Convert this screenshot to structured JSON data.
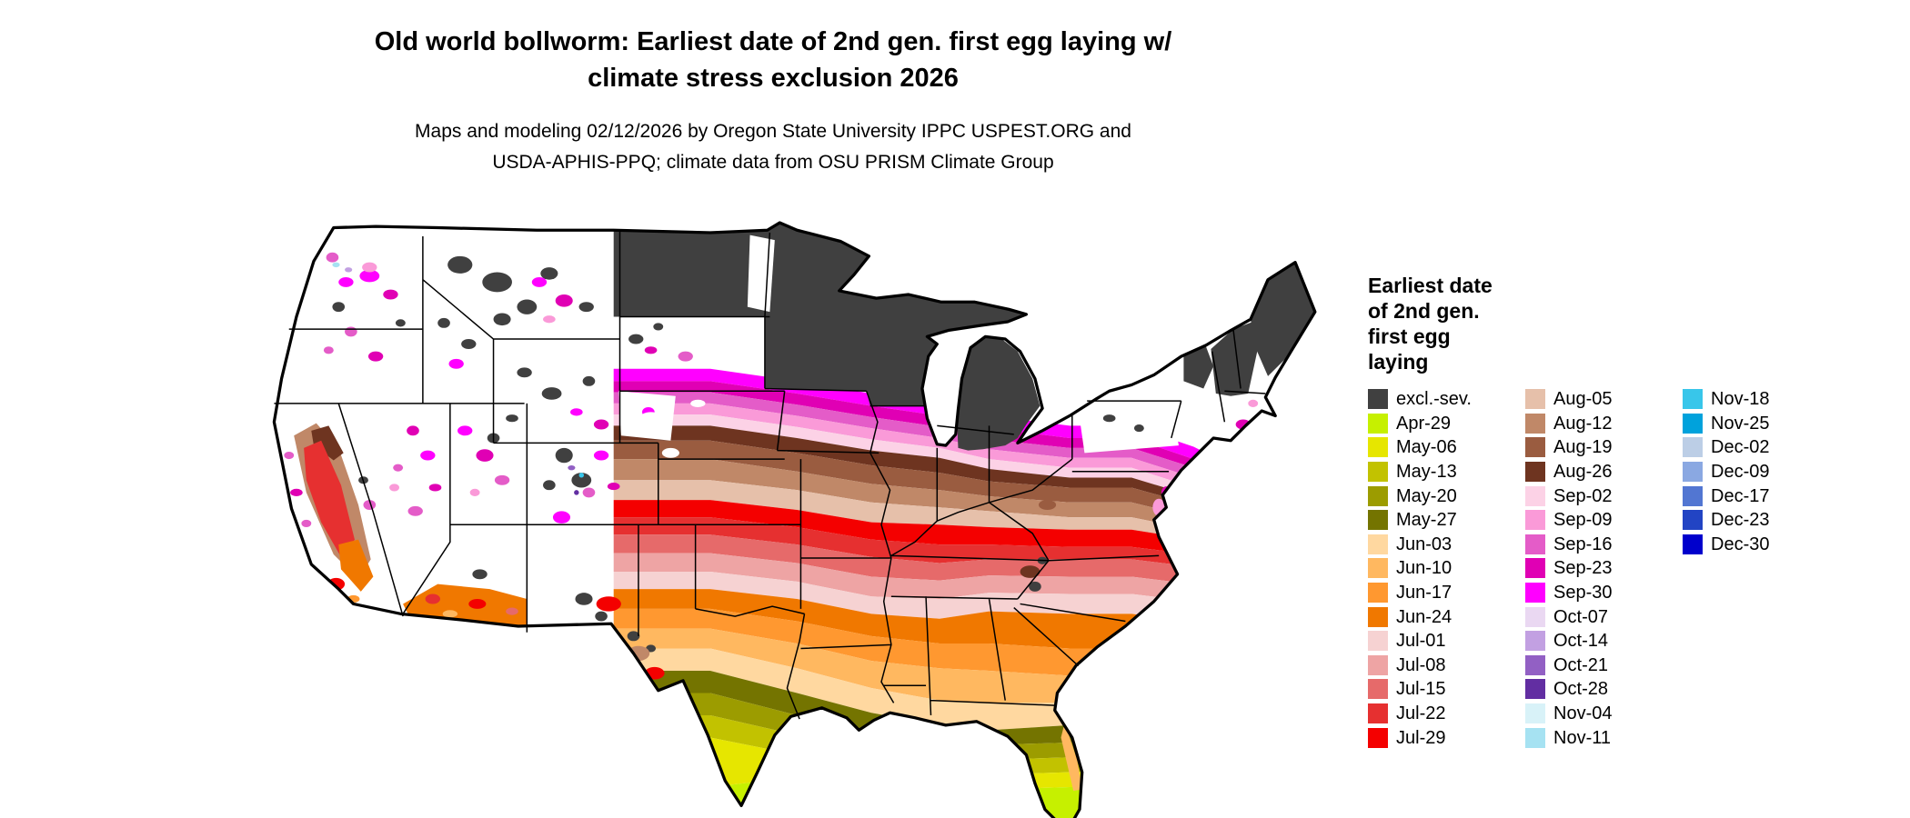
{
  "title": {
    "line1": "Old world bollworm: Earliest date of 2nd gen. first egg laying w/",
    "line2": "climate stress exclusion 2026"
  },
  "subtitle": {
    "line1": "Maps and modeling 02/12/2026 by Oregon State University IPPC USPEST.ORG and",
    "line2": "USDA-APHIS-PPQ; climate data from OSU PRISM Climate Group"
  },
  "legend": {
    "title_lines": [
      "Earliest date",
      "of 2nd gen.",
      "first egg",
      "laying"
    ],
    "columns": [
      [
        {
          "label": "excl.-sev.",
          "color": "#404040"
        },
        {
          "label": "Apr-29",
          "color": "#c6f000"
        },
        {
          "label": "May-06",
          "color": "#e6e600"
        },
        {
          "label": "May-13",
          "color": "#c2c200"
        },
        {
          "label": "May-20",
          "color": "#9c9c00"
        },
        {
          "label": "May-27",
          "color": "#747400"
        },
        {
          "label": "Jun-03",
          "color": "#ffd8a0"
        },
        {
          "label": "Jun-10",
          "color": "#ffb860"
        },
        {
          "label": "Jun-17",
          "color": "#ff9830"
        },
        {
          "label": "Jun-24",
          "color": "#f07800"
        },
        {
          "label": "Jul-01",
          "color": "#f6d2d2"
        },
        {
          "label": "Jul-08",
          "color": "#eea4a4"
        },
        {
          "label": "Jul-15",
          "color": "#e66a6a"
        },
        {
          "label": "Jul-22",
          "color": "#e63030"
        },
        {
          "label": "Jul-29",
          "color": "#f40000"
        }
      ],
      [
        {
          "label": "Aug-05",
          "color": "#e6c0aa"
        },
        {
          "label": "Aug-12",
          "color": "#c08868"
        },
        {
          "label": "Aug-19",
          "color": "#9a5c40"
        },
        {
          "label": "Aug-26",
          "color": "#6e3420"
        },
        {
          "label": "Sep-02",
          "color": "#fcd2e6"
        },
        {
          "label": "Sep-09",
          "color": "#fa9ad8"
        },
        {
          "label": "Sep-16",
          "color": "#e45cc8"
        },
        {
          "label": "Sep-23",
          "color": "#e000b4"
        },
        {
          "label": "Sep-30",
          "color": "#ff00ff"
        },
        {
          "label": "Oct-07",
          "color": "#ead8f2"
        },
        {
          "label": "Oct-14",
          "color": "#c2a0e2"
        },
        {
          "label": "Oct-21",
          "color": "#9260c4"
        },
        {
          "label": "Oct-28",
          "color": "#622ea2"
        },
        {
          "label": "Nov-04",
          "color": "#d8f2f8"
        },
        {
          "label": "Nov-11",
          "color": "#a6e2f2"
        }
      ],
      [
        {
          "label": "Nov-18",
          "color": "#38c6ea"
        },
        {
          "label": "Nov-25",
          "color": "#00a2dc"
        },
        {
          "label": "Dec-02",
          "color": "#bccee6"
        },
        {
          "label": "Dec-09",
          "color": "#8aa8e2"
        },
        {
          "label": "Dec-17",
          "color": "#5276d2"
        },
        {
          "label": "Dec-23",
          "color": "#2244c4"
        },
        {
          "label": "Dec-30",
          "color": "#0000cc"
        }
      ]
    ]
  },
  "map": {
    "background": "#ffffff",
    "border_color": "#000000"
  }
}
